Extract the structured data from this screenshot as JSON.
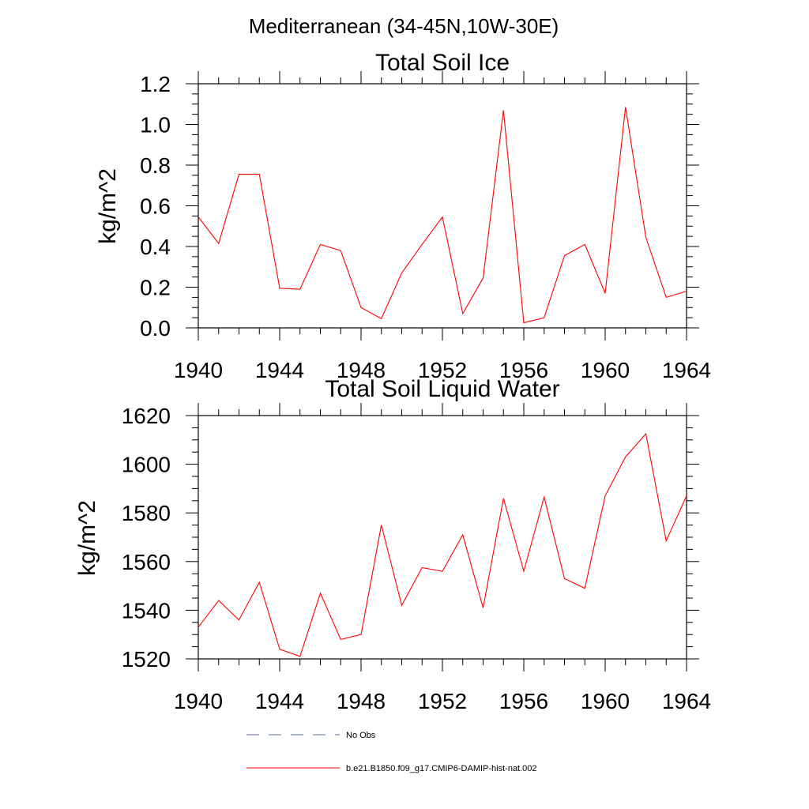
{
  "figure": {
    "title": "Mediterranean (34-45N,10W-30E)"
  },
  "colors": {
    "series_line": "#ff0000",
    "no_obs_line": "#5a6aa8",
    "axes": "#000000"
  },
  "chart_data": [
    {
      "type": "line",
      "title": "Total Soil Ice",
      "xlabel": "",
      "ylabel": "kg/m^2",
      "xlim": [
        1940,
        1964
      ],
      "ylim": [
        0.0,
        1.2
      ],
      "x_ticks": [
        1940,
        1944,
        1948,
        1952,
        1956,
        1960,
        1964
      ],
      "x_tick_labels": [
        "1940",
        "1944",
        "1948",
        "1952",
        "1956",
        "1960",
        "1964"
      ],
      "y_ticks": [
        0.0,
        0.2,
        0.4,
        0.6,
        0.8,
        1.0,
        1.2
      ],
      "y_tick_labels": [
        "0.0",
        "0.2",
        "0.4",
        "0.6",
        "0.8",
        "1.0",
        "1.2"
      ],
      "grid": false,
      "series": [
        {
          "name": "b.e21.B1850.f09_g17.CMIP6-DAMIP-hist-nat.002",
          "x": [
            1940,
            1941,
            1942,
            1943,
            1944,
            1945,
            1946,
            1947,
            1948,
            1949,
            1950,
            1951,
            1952,
            1953,
            1954,
            1955,
            1956,
            1957,
            1958,
            1959,
            1960,
            1961,
            1962,
            1963,
            1964
          ],
          "y": [
            0.545,
            0.415,
            0.755,
            0.755,
            0.195,
            0.19,
            0.41,
            0.38,
            0.1,
            0.045,
            0.27,
            0.41,
            0.545,
            0.07,
            0.245,
            1.07,
            0.025,
            0.05,
            0.355,
            0.41,
            0.17,
            1.085,
            0.445,
            0.15,
            0.18
          ]
        }
      ]
    },
    {
      "type": "line",
      "title": "Total Soil Liquid Water",
      "xlabel": "",
      "ylabel": "kg/m^2",
      "xlim": [
        1940,
        1964
      ],
      "ylim": [
        1520,
        1620
      ],
      "x_ticks": [
        1940,
        1944,
        1948,
        1952,
        1956,
        1960,
        1964
      ],
      "x_tick_labels": [
        "1940",
        "1944",
        "1948",
        "1952",
        "1956",
        "1960",
        "1964"
      ],
      "y_ticks": [
        1520,
        1540,
        1560,
        1580,
        1600,
        1620
      ],
      "y_tick_labels": [
        "1520",
        "1540",
        "1560",
        "1580",
        "1600",
        "1620"
      ],
      "grid": false,
      "series": [
        {
          "name": "b.e21.B1850.f09_g17.CMIP6-DAMIP-hist-nat.002",
          "x": [
            1940,
            1941,
            1942,
            1943,
            1944,
            1945,
            1946,
            1947,
            1948,
            1949,
            1950,
            1951,
            1952,
            1953,
            1954,
            1955,
            1956,
            1957,
            1958,
            1959,
            1960,
            1961,
            1962,
            1963,
            1964
          ],
          "y": [
            1533,
            1544,
            1536,
            1551.5,
            1524,
            1521,
            1547,
            1528,
            1530,
            1575,
            1542,
            1557.5,
            1556,
            1571,
            1541,
            1586,
            1556,
            1586.5,
            1553,
            1549,
            1587,
            1603,
            1612.5,
            1568.5,
            1587
          ]
        }
      ]
    }
  ],
  "legend": {
    "position": "bottom",
    "entries": [
      {
        "label": "No Obs",
        "style": "dashed"
      },
      {
        "label": "b.e21.B1850.f09_g17.CMIP6-DAMIP-hist-nat.002",
        "style": "solid"
      }
    ]
  }
}
